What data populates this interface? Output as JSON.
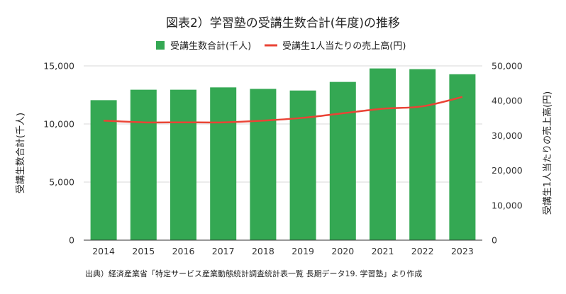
{
  "chart_data": {
    "type": "bar",
    "title": "図表2）学習塾の受講生数合計(年度)の推移",
    "categories": [
      "2014",
      "2015",
      "2016",
      "2017",
      "2018",
      "2019",
      "2020",
      "2021",
      "2022",
      "2023"
    ],
    "series": [
      {
        "name": "受講生数合計(千人)",
        "type": "bar",
        "axis": "left",
        "color": "#34a853",
        "values": [
          12050,
          12950,
          12950,
          13150,
          13020,
          12880,
          13620,
          14780,
          14720,
          14280
        ]
      },
      {
        "name": "受講生1人当たりの売上高(円)",
        "type": "line",
        "axis": "right",
        "color": "#ea4335",
        "values": [
          34300,
          33800,
          33800,
          33800,
          34300,
          35100,
          36400,
          37700,
          38400,
          41100
        ]
      }
    ],
    "ylabel": "受講生数合計(千人)",
    "ylabel_right": "受講生1人当たりの売上高(円)",
    "ylim": [
      0,
      15000
    ],
    "ylim_right": [
      0,
      50000
    ],
    "yticks": [
      "0",
      "5,000",
      "10,000",
      "15,000"
    ],
    "yticks_values": [
      0,
      5000,
      10000,
      15000
    ],
    "yticks_right": [
      "0",
      "10,000",
      "20,000",
      "30,000",
      "40,000",
      "50,000"
    ],
    "yticks_right_values": [
      0,
      10000,
      20000,
      30000,
      40000,
      50000
    ],
    "grid": true,
    "legend_position": "top-center",
    "source": "出典）経済産業省「特定サービス産業動態統計調査統計表一覧 長期データ19. 学習塾」より作成"
  }
}
